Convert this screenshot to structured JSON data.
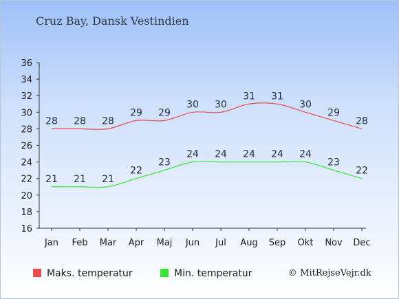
{
  "title": "Cruz Bay, Dansk Vestindien",
  "copyright": "© MitRejseVejr.dk",
  "colors": {
    "max": "#e84c4c",
    "min": "#3ae33a"
  },
  "chart_data": {
    "type": "line",
    "categories": [
      "Jan",
      "Feb",
      "Mar",
      "Apr",
      "Maj",
      "Jun",
      "Jul",
      "Aug",
      "Sep",
      "Okt",
      "Nov",
      "Dec"
    ],
    "series": [
      {
        "name": "Maks. temperatur",
        "values": [
          28,
          28,
          28,
          29,
          29,
          30,
          30,
          31,
          31,
          30,
          29,
          28
        ]
      },
      {
        "name": "Min. temperatur",
        "values": [
          21,
          21,
          21,
          22,
          23,
          24,
          24,
          24,
          24,
          24,
          23,
          22
        ]
      }
    ],
    "yticks": [
      16,
      18,
      20,
      22,
      24,
      26,
      28,
      30,
      32,
      34,
      36
    ],
    "ylim": [
      16,
      36
    ],
    "legend": "bottom-left",
    "grid": false
  }
}
